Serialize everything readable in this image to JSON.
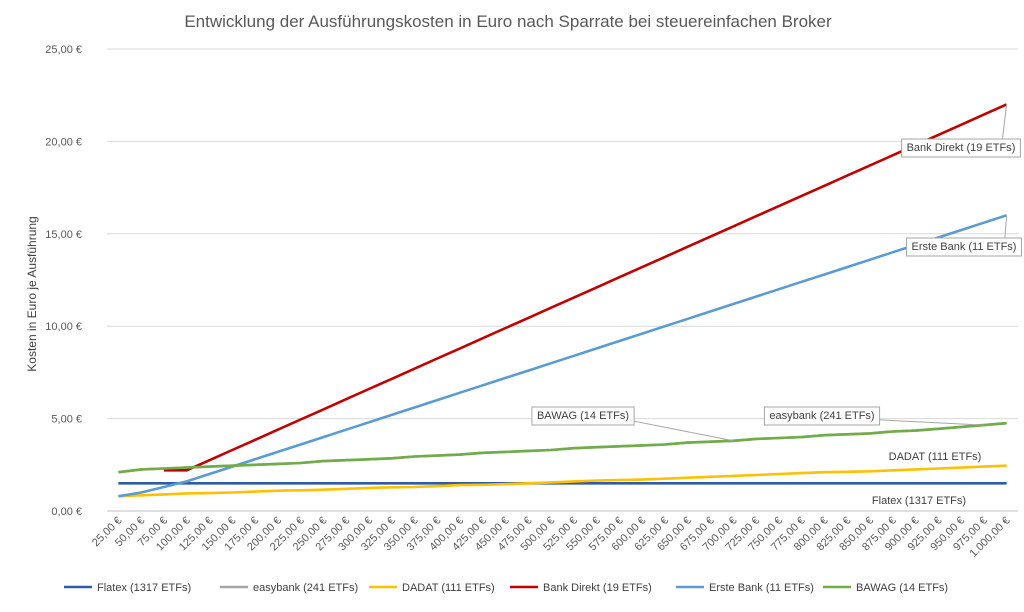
{
  "chart_data": {
    "type": "line",
    "title": "Entwicklung der Ausführungskosten in Euro nach Sparrate bei steuereinfachen Broker",
    "xlabel": "",
    "ylabel": "Kosten in Euro je Ausführung",
    "ylim": [
      0,
      25
    ],
    "yticks": [
      "0,00 €",
      "5,00 €",
      "10,00 €",
      "15,00 €",
      "20,00 €",
      "25,00 €"
    ],
    "grid": true,
    "legend_position": "bottom",
    "categories": [
      "25,00 €",
      "50,00 €",
      "75,00 €",
      "100,00 €",
      "125,00 €",
      "150,00 €",
      "175,00 €",
      "200,00 €",
      "225,00 €",
      "250,00 €",
      "275,00 €",
      "300,00 €",
      "325,00 €",
      "350,00 €",
      "375,00 €",
      "400,00 €",
      "425,00 €",
      "450,00 €",
      "475,00 €",
      "500,00 €",
      "525,00 €",
      "550,00 €",
      "575,00 €",
      "600,00 €",
      "625,00 €",
      "650,00 €",
      "675,00 €",
      "700,00 €",
      "725,00 €",
      "750,00 €",
      "775,00 €",
      "800,00 €",
      "825,00 €",
      "850,00 €",
      "875,00 €",
      "900,00 €",
      "925,00 €",
      "950,00 €",
      "975,00 €",
      "1.000,00 €"
    ],
    "series": [
      {
        "name": "Flatex (1317 ETFs)",
        "color": "#2e5ca8",
        "values": [
          1.5,
          1.5,
          1.5,
          1.5,
          1.5,
          1.5,
          1.5,
          1.5,
          1.5,
          1.5,
          1.5,
          1.5,
          1.5,
          1.5,
          1.5,
          1.5,
          1.5,
          1.5,
          1.5,
          1.5,
          1.5,
          1.5,
          1.5,
          1.5,
          1.5,
          1.5,
          1.5,
          1.5,
          1.5,
          1.5,
          1.5,
          1.5,
          1.5,
          1.5,
          1.5,
          1.5,
          1.5,
          1.5,
          1.5,
          1.5
        ]
      },
      {
        "name": "easybank (241 ETFs)",
        "color": "#a5a5a5",
        "values": [
          2.1,
          2.25,
          2.3,
          2.35,
          2.4,
          2.45,
          2.5,
          2.55,
          2.6,
          2.7,
          2.75,
          2.8,
          2.85,
          2.95,
          3.0,
          3.05,
          3.15,
          3.2,
          3.25,
          3.3,
          3.4,
          3.45,
          3.5,
          3.55,
          3.6,
          3.7,
          3.75,
          3.8,
          3.9,
          3.95,
          4.0,
          4.1,
          4.15,
          4.2,
          4.3,
          4.35,
          4.45,
          4.55,
          4.65,
          4.75
        ]
      },
      {
        "name": "DADAT (111 ETFs)",
        "color": "#ffc000",
        "values": [
          0.8,
          0.85,
          0.9,
          0.95,
          0.97,
          1.0,
          1.05,
          1.1,
          1.12,
          1.15,
          1.2,
          1.25,
          1.28,
          1.3,
          1.35,
          1.4,
          1.42,
          1.45,
          1.5,
          1.55,
          1.6,
          1.65,
          1.68,
          1.7,
          1.75,
          1.8,
          1.85,
          1.9,
          1.95,
          2.0,
          2.05,
          2.1,
          2.12,
          2.15,
          2.2,
          2.25,
          2.3,
          2.35,
          2.4,
          2.45
        ]
      },
      {
        "name": "Bank Direkt (19 ETFs)",
        "color": "#c00000",
        "values": [
          null,
          null,
          2.2,
          2.2,
          2.75,
          3.3,
          3.85,
          4.4,
          4.95,
          5.5,
          6.05,
          6.6,
          7.15,
          7.7,
          8.25,
          8.8,
          9.35,
          9.9,
          10.45,
          11.0,
          11.55,
          12.1,
          12.65,
          13.2,
          13.75,
          14.3,
          14.85,
          15.4,
          15.95,
          16.5,
          17.05,
          17.6,
          18.15,
          18.7,
          19.25,
          19.8,
          20.35,
          20.9,
          21.45,
          22.0
        ]
      },
      {
        "name": "Erste Bank (11 ETFs)",
        "color": "#5b9bd5",
        "values": [
          0.8,
          1.0,
          1.3,
          1.6,
          2.0,
          2.4,
          2.8,
          3.2,
          3.6,
          4.0,
          4.4,
          4.8,
          5.2,
          5.6,
          6.0,
          6.4,
          6.8,
          7.2,
          7.6,
          8.0,
          8.4,
          8.8,
          9.2,
          9.6,
          10.0,
          10.4,
          10.8,
          11.2,
          11.6,
          12.0,
          12.4,
          12.8,
          13.2,
          13.6,
          14.0,
          14.4,
          14.8,
          15.2,
          15.6,
          16.0
        ]
      },
      {
        "name": "BAWAG (14 ETFs)",
        "color": "#70ad47",
        "values": [
          2.1,
          2.25,
          2.3,
          2.35,
          2.4,
          2.45,
          2.5,
          2.55,
          2.6,
          2.7,
          2.75,
          2.8,
          2.85,
          2.95,
          3.0,
          3.05,
          3.15,
          3.2,
          3.25,
          3.3,
          3.4,
          3.45,
          3.5,
          3.55,
          3.6,
          3.7,
          3.75,
          3.8,
          3.9,
          3.95,
          4.0,
          4.1,
          4.15,
          4.2,
          4.3,
          4.35,
          4.45,
          4.55,
          4.65,
          4.75
        ]
      }
    ],
    "annotations": [
      {
        "text": "Bank Direkt (19 ETFs)",
        "boxed": true,
        "target_series": 3,
        "target_index": 39
      },
      {
        "text": "Erste Bank (11 ETFs)",
        "boxed": true,
        "target_series": 4,
        "target_index": 39
      },
      {
        "text": "BAWAG (14 ETFs)",
        "boxed": true,
        "target_series": 5,
        "target_index": 27
      },
      {
        "text": "easybank (241 ETFs)",
        "boxed": true,
        "target_series": 1,
        "target_index": 38
      },
      {
        "text": "DADAT (111 ETFs)",
        "boxed": false,
        "target_series": 2,
        "target_index": -1
      },
      {
        "text": "Flatex (1317 ETFs)",
        "boxed": false,
        "target_series": 0,
        "target_index": -1
      }
    ]
  }
}
